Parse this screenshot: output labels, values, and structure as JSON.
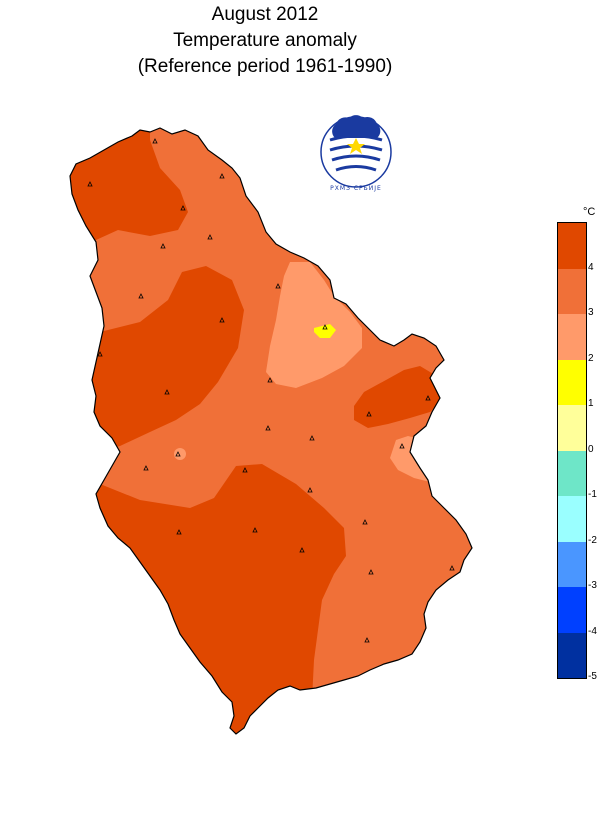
{
  "title": {
    "line1": "August 2012",
    "line2": "Temperature anomaly",
    "line3": "(Reference period 1961-1990)"
  },
  "logo": {
    "name": "rhmz-srbije-logo",
    "text": "РХМЗ СРБИЈЕ",
    "color": "#1a3aa0"
  },
  "legend": {
    "unit": "°C",
    "classes": [
      {
        "range": [
          4,
          5
        ],
        "color": "#e04800"
      },
      {
        "range": [
          3,
          4
        ],
        "color": "#f07038"
      },
      {
        "range": [
          2,
          3
        ],
        "color": "#ff9a6a"
      },
      {
        "range": [
          1,
          2
        ],
        "color": "#ffff00"
      },
      {
        "range": [
          0,
          1
        ],
        "color": "#ffff9a"
      },
      {
        "range": [
          -1,
          0
        ],
        "color": "#6ee6c8"
      },
      {
        "range": [
          -2,
          -1
        ],
        "color": "#9affff"
      },
      {
        "range": [
          -3,
          -2
        ],
        "color": "#4a96ff"
      },
      {
        "range": [
          -4,
          -3
        ],
        "color": "#0040ff"
      },
      {
        "range": [
          -5,
          -4
        ],
        "color": "#0030a0"
      }
    ],
    "ticks": [
      "4",
      "3",
      "2",
      "1",
      "0",
      "-1",
      "-2",
      "-3",
      "-4",
      "-5"
    ]
  },
  "map": {
    "region": "Serbia",
    "stations_count": 28
  }
}
